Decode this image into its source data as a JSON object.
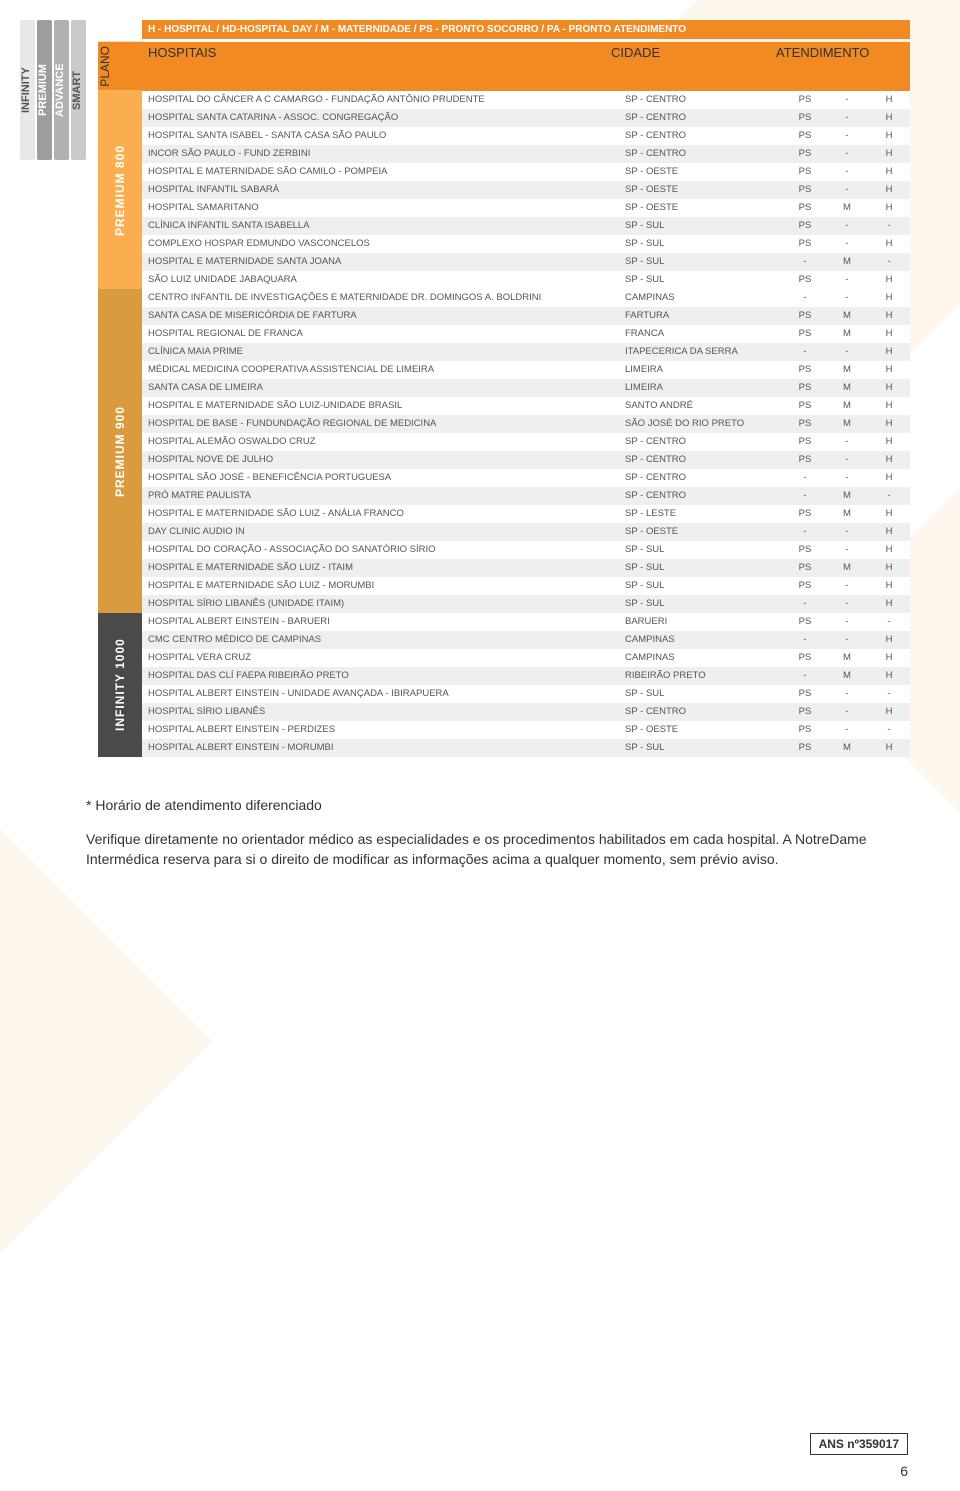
{
  "colors": {
    "orange": "#f18a22",
    "sec800": "#faae4e",
    "sec900": "#d99b3e",
    "sec1000": "#4a4a4a",
    "row_odd": "#efefef",
    "row_even": "#ffffff",
    "text": "#555555"
  },
  "left_tabs": {
    "infinity": "INFINITY",
    "premium": "PREMIUM",
    "advance": "ADVANCE",
    "smart": "SMART"
  },
  "legend": "H - HOSPITAL / HD-HOSPITAL DAY / M - MATERNIDADE / PS - PRONTO SOCORRO / PA - PRONTO ATENDIMENTO",
  "headers": {
    "plano": "PLANO",
    "hospitais": "HOSPITAIS",
    "cidade": "CIDADE",
    "atendimento": "ATENDIMENTO"
  },
  "sections": [
    {
      "label": "PREMIUM 800",
      "class": "sec-800",
      "rows": [
        {
          "h": "HOSPITAL DO CÂNCER A C CAMARGO - FUNDAÇÃO ANTÔNIO PRUDENTE",
          "c": "SP - CENTRO",
          "a": [
            "PS",
            "-",
            "H"
          ]
        },
        {
          "h": "HOSPITAL SANTA CATARINA - ASSOC. CONGREGAÇÃO",
          "c": "SP - CENTRO",
          "a": [
            "PS",
            "-",
            "H"
          ]
        },
        {
          "h": "HOSPITAL SANTA ISABEL - SANTA CASA SÃO PAULO",
          "c": "SP - CENTRO",
          "a": [
            "PS",
            "-",
            "H"
          ]
        },
        {
          "h": "INCOR SÃO PAULO - FUND ZERBINI",
          "c": "SP - CENTRO",
          "a": [
            "PS",
            "-",
            "H"
          ]
        },
        {
          "h": "HOSPITAL E MATERNIDADE SÃO CAMILO - POMPEIA",
          "c": "SP - OESTE",
          "a": [
            "PS",
            "-",
            "H"
          ]
        },
        {
          "h": "HOSPITAL INFANTIL SABARÁ",
          "c": "SP - OESTE",
          "a": [
            "PS",
            "-",
            "H"
          ]
        },
        {
          "h": "HOSPITAL SAMARITANO",
          "c": "SP - OESTE",
          "a": [
            "PS",
            "M",
            "H"
          ]
        },
        {
          "h": "CLÍNICA INFANTIL SANTA ISABELLA",
          "c": "SP - SUL",
          "a": [
            "PS",
            "-",
            "-"
          ]
        },
        {
          "h": "COMPLEXO HOSPAR EDMUNDO VASCONCELOS",
          "c": "SP - SUL",
          "a": [
            "PS",
            "-",
            "H"
          ]
        },
        {
          "h": "HOSPITAL E MATERNIDADE SANTA JOANA",
          "c": "SP - SUL",
          "a": [
            "-",
            "M",
            "-"
          ]
        },
        {
          "h": "SÃO LUIZ UNIDADE JABAQUARA",
          "c": "SP - SUL",
          "a": [
            "PS",
            "-",
            "H"
          ]
        }
      ]
    },
    {
      "label": "PREMIUM 900",
      "class": "sec-900",
      "rows": [
        {
          "h": "CENTRO INFANTIL DE INVESTIGAÇÕES E MATERNIDADE DR. DOMINGOS A. BOLDRINI",
          "c": "CAMPINAS",
          "a": [
            "-",
            "-",
            "H"
          ]
        },
        {
          "h": "SANTA CASA DE MISERICÓRDIA DE FARTURA",
          "c": "FARTURA",
          "a": [
            "PS",
            "M",
            "H"
          ]
        },
        {
          "h": "HOSPITAL REGIONAL DE FRANCA",
          "c": "FRANCA",
          "a": [
            "PS",
            "M",
            "H"
          ]
        },
        {
          "h": "CLÍNICA MAIA PRIME",
          "c": "ITAPECERICA DA SERRA",
          "a": [
            "-",
            "-",
            "H"
          ]
        },
        {
          "h": "MÉDICAL MEDICINA COOPERATIVA ASSISTENCIAL DE LIMEIRA",
          "c": "LIMEIRA",
          "a": [
            "PS",
            "M",
            "H"
          ]
        },
        {
          "h": "SANTA CASA DE LIMEIRA",
          "c": "LIMEIRA",
          "a": [
            "PS",
            "M",
            "H"
          ]
        },
        {
          "h": "HOSPITAL E MATERNIDADE SÃO LUIZ-UNIDADE BRASIL",
          "c": "SANTO ANDRÉ",
          "a": [
            "PS",
            "M",
            "H"
          ]
        },
        {
          "h": "HOSPITAL DE BASE - FUNDUNDAÇÃO REGIONAL DE MEDICINA",
          "c": "SÃO JOSÉ DO RIO PRETO",
          "a": [
            "PS",
            "M",
            "H"
          ]
        },
        {
          "h": "HOSPITAL ALEMÃO OSWALDO CRUZ",
          "c": "SP - CENTRO",
          "a": [
            "PS",
            "-",
            "H"
          ]
        },
        {
          "h": "HOSPITAL NOVE DE JULHO",
          "c": "SP - CENTRO",
          "a": [
            "PS",
            "-",
            "H"
          ]
        },
        {
          "h": "HOSPITAL SÃO JOSÉ - BENEFICÊNCIA PORTUGUESA",
          "c": "SP - CENTRO",
          "a": [
            "-",
            "-",
            "H"
          ]
        },
        {
          "h": "PRÓ MATRE PAULISTA",
          "c": "SP - CENTRO",
          "a": [
            "-",
            "M",
            "-"
          ]
        },
        {
          "h": "HOSPITAL E MATERNIDADE SÃO LUIZ - ANÁLIA FRANCO",
          "c": "SP - LESTE",
          "a": [
            "PS",
            "M",
            "H"
          ]
        },
        {
          "h": "DAY CLINIC AUDIO IN",
          "c": "SP - OESTE",
          "a": [
            "-",
            "-",
            "H"
          ]
        },
        {
          "h": "HOSPITAL DO CORAÇÃO - ASSOCIAÇÃO DO SANATÓRIO SÍRIO",
          "c": "SP - SUL",
          "a": [
            "PS",
            "-",
            "H"
          ]
        },
        {
          "h": "HOSPITAL E MATERNIDADE SÃO LUIZ - ITAIM",
          "c": "SP - SUL",
          "a": [
            "PS",
            "M",
            "H"
          ]
        },
        {
          "h": "HOSPITAL E MATERNIDADE SÃO LUIZ - MORUMBI",
          "c": "SP - SUL",
          "a": [
            "PS",
            "-",
            "H"
          ]
        },
        {
          "h": "HOSPITAL SÍRIO LIBANÊS (UNIDADE ITAIM)",
          "c": "SP - SUL",
          "a": [
            "-",
            "-",
            "H"
          ]
        }
      ]
    },
    {
      "label": "INFINITY 1000",
      "class": "sec-1000",
      "rows": [
        {
          "h": "HOSPITAL ALBERT EINSTEIN - BARUERI",
          "c": "BARUERI",
          "a": [
            "PS",
            "-",
            "-"
          ]
        },
        {
          "h": "CMC CENTRO MÉDICO DE CAMPINAS",
          "c": "CAMPINAS",
          "a": [
            "-",
            "-",
            "H"
          ]
        },
        {
          "h": "HOSPITAL VERA CRUZ",
          "c": "CAMPINAS",
          "a": [
            "PS",
            "M",
            "H"
          ]
        },
        {
          "h": "HOSPITAL DAS CLÍ FAEPA RIBEIRÃO PRETO",
          "c": "RIBEIRÃO PRETO",
          "a": [
            "-",
            "M",
            "H"
          ]
        },
        {
          "h": "HOSPITAL ALBERT EINSTEIN - UNIDADE AVANÇADA - IBIRAPUERA",
          "c": "SP - SUL",
          "a": [
            "PS",
            "-",
            "-"
          ]
        },
        {
          "h": "HOSPITAL SÍRIO LIBANÊS",
          "c": "SP - CENTRO",
          "a": [
            "PS",
            "-",
            "H"
          ]
        },
        {
          "h": "HOSPITAL ALBERT EINSTEIN - PERDIZES",
          "c": "SP - OESTE",
          "a": [
            "PS",
            "-",
            "-"
          ]
        },
        {
          "h": "HOSPITAL ALBERT EINSTEIN - MORUMBI",
          "c": "SP - SUL",
          "a": [
            "PS",
            "M",
            "H"
          ]
        }
      ]
    }
  ],
  "notes": {
    "line1": "* Horário de atendimento diferenciado",
    "line2": "Verifique diretamente no orientador médico as especialidades e os procedimentos habilitados em cada hospital. A NotreDame Intermédica reserva para si o direito de modificar as informações acima a qualquer momento, sem prévio aviso."
  },
  "ans": "ANS nº359017",
  "page_number": "6"
}
